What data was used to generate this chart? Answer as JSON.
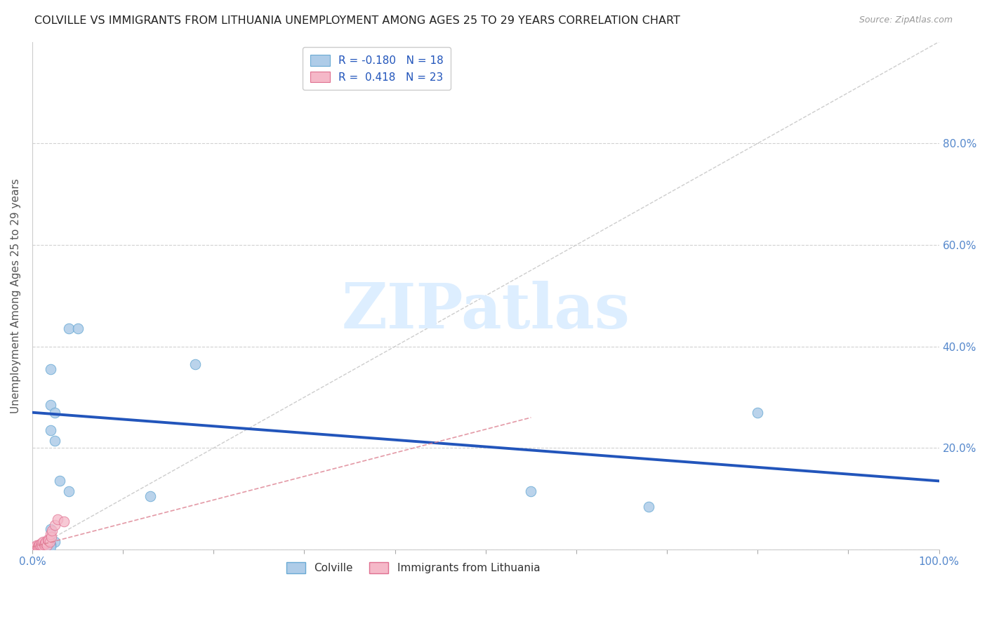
{
  "title": "COLVILLE VS IMMIGRANTS FROM LITHUANIA UNEMPLOYMENT AMONG AGES 25 TO 29 YEARS CORRELATION CHART",
  "source": "Source: ZipAtlas.com",
  "ylabel": "Unemployment Among Ages 25 to 29 years",
  "xlim": [
    0.0,
    1.0
  ],
  "ylim": [
    0.0,
    1.0
  ],
  "colville_color": "#aecce8",
  "colville_edge_color": "#6aaad4",
  "lithuania_color": "#f5b8c8",
  "lithuania_edge_color": "#e07090",
  "trend_blue_color": "#2255bb",
  "trend_pink_color": "#dd8090",
  "diagonal_color": "#c8c8c8",
  "legend_R_colville": "-0.180",
  "legend_N_colville": "18",
  "legend_R_lithuania": "0.418",
  "legend_N_lithuania": "23",
  "colville_x": [
    0.02,
    0.02,
    0.025,
    0.03,
    0.04,
    0.05,
    0.02,
    0.025,
    0.04,
    0.13,
    0.18,
    0.55,
    0.68,
    0.8,
    0.02,
    0.025,
    0.02,
    0.02
  ],
  "colville_y": [
    0.285,
    0.235,
    0.215,
    0.135,
    0.435,
    0.435,
    0.355,
    0.27,
    0.115,
    0.105,
    0.365,
    0.115,
    0.085,
    0.27,
    0.04,
    0.015,
    0.01,
    0.005
  ],
  "lithuania_x": [
    0.003,
    0.004,
    0.005,
    0.006,
    0.007,
    0.008,
    0.009,
    0.01,
    0.011,
    0.012,
    0.013,
    0.014,
    0.015,
    0.016,
    0.017,
    0.018,
    0.019,
    0.02,
    0.021,
    0.022,
    0.025,
    0.028,
    0.035
  ],
  "lithuania_y": [
    0.005,
    0.005,
    0.008,
    0.005,
    0.008,
    0.01,
    0.008,
    0.012,
    0.008,
    0.015,
    0.01,
    0.012,
    0.015,
    0.008,
    0.02,
    0.018,
    0.015,
    0.03,
    0.025,
    0.038,
    0.048,
    0.06,
    0.055
  ],
  "colville_trend_x": [
    0.0,
    1.0
  ],
  "colville_trend_y": [
    0.27,
    0.135
  ],
  "lith_trend_x0": 0.0,
  "lith_trend_y0": 0.005,
  "lith_trend_x1": 0.55,
  "lith_trend_y1": 0.26,
  "marker_size": 110,
  "right_ytick_positions": [
    0.2,
    0.4,
    0.6,
    0.8
  ],
  "right_ytick_labels": [
    "20.0%",
    "40.0%",
    "60.0%",
    "80.0%"
  ],
  "right_tick_color": "#5588cc",
  "xtick_positions": [
    0.0,
    1.0
  ],
  "xtick_labels": [
    "0.0%",
    "100.0%"
  ],
  "xtick_color": "#5588cc",
  "background_color": "#ffffff",
  "grid_color": "#cccccc",
  "ylabel_color": "#555555",
  "watermark_text": "ZIPatlas",
  "watermark_color": "#ddeeff"
}
